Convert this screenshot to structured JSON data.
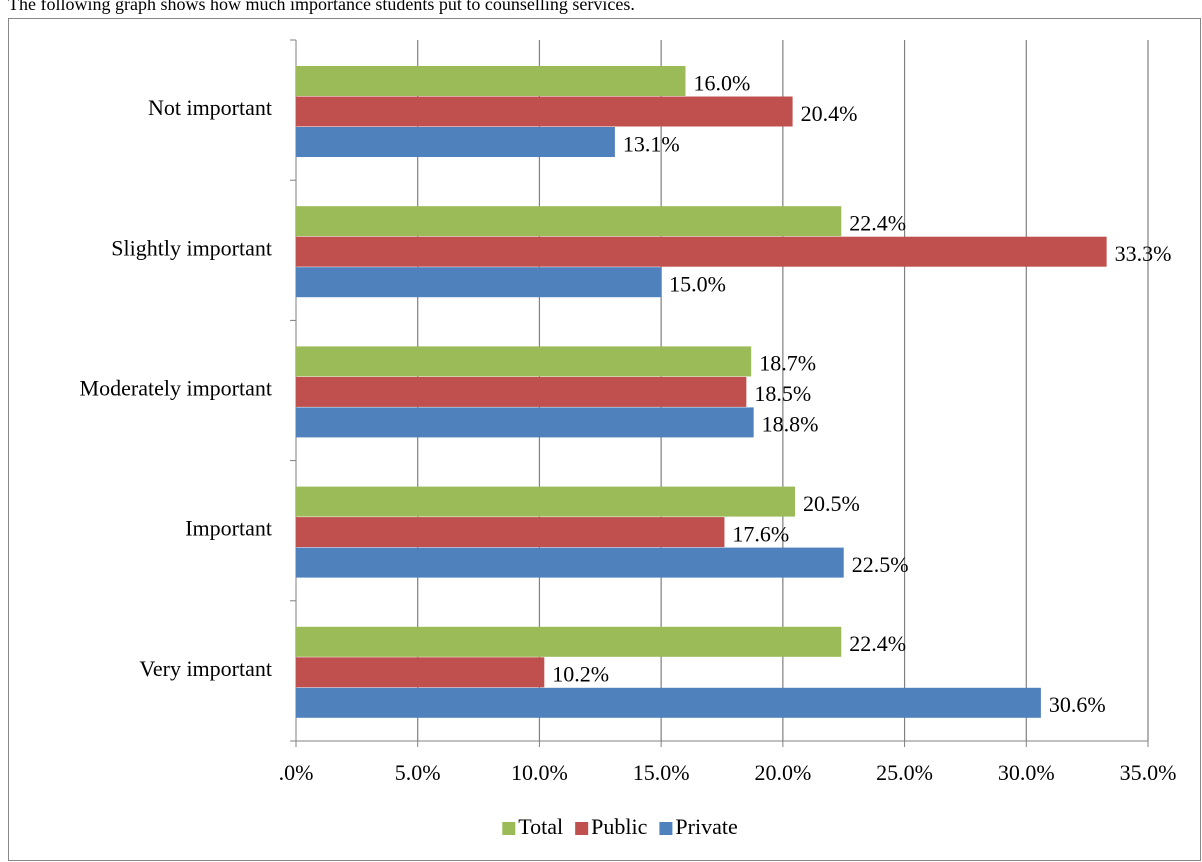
{
  "chart_data": {
    "type": "bar",
    "orientation": "horizontal",
    "title": "The following graph shows how much importance students put to counselling services.",
    "categories": [
      "Not important",
      "Slightly important",
      "Moderately important",
      "Important",
      "Very important"
    ],
    "series": [
      {
        "name": "Total",
        "color": "#9bbb59",
        "values": [
          16.0,
          22.4,
          18.7,
          20.5,
          22.4
        ],
        "value_labels": [
          "16.0%",
          "22.4%",
          "18.7%",
          "20.5%",
          "22.4%"
        ]
      },
      {
        "name": "Public",
        "color": "#c0504d",
        "values": [
          20.4,
          33.3,
          18.5,
          17.6,
          10.2
        ],
        "value_labels": [
          "20.4%",
          "33.3%",
          "18.5%",
          "17.6%",
          "10.2%"
        ]
      },
      {
        "name": "Private",
        "color": "#4f81bd",
        "values": [
          13.1,
          15.0,
          18.8,
          22.5,
          30.6
        ],
        "value_labels": [
          "13.1%",
          "15.0%",
          "18.8%",
          "22.5%",
          "30.6%"
        ]
      }
    ],
    "xlim": [
      0,
      35
    ],
    "xticks": [
      {
        "value": 0,
        "label": ".0%"
      },
      {
        "value": 5,
        "label": "5.0%"
      },
      {
        "value": 10,
        "label": "10.0%"
      },
      {
        "value": 15,
        "label": "15.0%"
      },
      {
        "value": 20,
        "label": "20.0%"
      },
      {
        "value": 25,
        "label": "25.0%"
      },
      {
        "value": 30,
        "label": "30.0%"
      },
      {
        "value": 35,
        "label": "35.0%"
      }
    ],
    "grid": true,
    "legend": "bottom"
  }
}
